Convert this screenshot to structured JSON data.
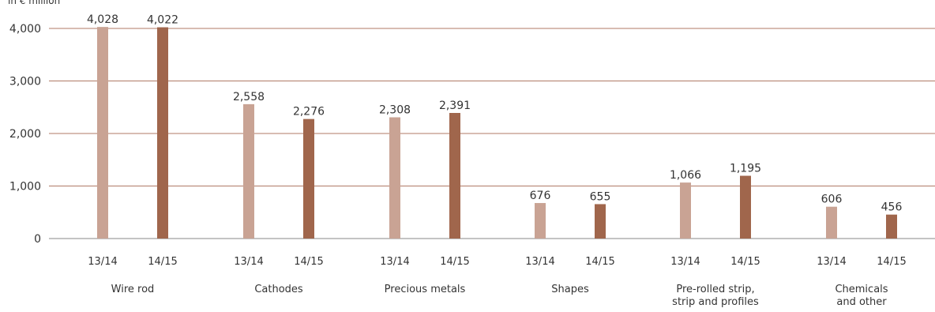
{
  "chart_data": {
    "type": "bar",
    "unit_label": "in € million",
    "categories": [
      "Wire rod",
      "Cathodes",
      "Precious metals",
      "Shapes",
      "Pre-rolled strip,\nstrip and profiles",
      "Chemicals\nand other"
    ],
    "series": [
      {
        "name": "13/14",
        "color": "#c9a394",
        "values": [
          4028,
          2558,
          2308,
          676,
          1066,
          606
        ]
      },
      {
        "name": "14/15",
        "color": "#a0664c",
        "values": [
          4022,
          2276,
          2391,
          655,
          1195,
          456
        ]
      }
    ],
    "value_labels": {
      "13/14": [
        "4,028",
        "2,558",
        "2,308",
        "676",
        "1,066",
        "606"
      ],
      "14/15": [
        "4,022",
        "2,276",
        "2,391",
        "655",
        "1,195",
        "456"
      ]
    },
    "y_ticks": [
      0,
      1000,
      2000,
      3000,
      4000
    ],
    "y_tick_labels": [
      "0",
      "1,000",
      "2,000",
      "3,000",
      "4,000"
    ],
    "ylim": [
      0,
      4200
    ],
    "grid": true,
    "grid_color": "#b07a66"
  }
}
